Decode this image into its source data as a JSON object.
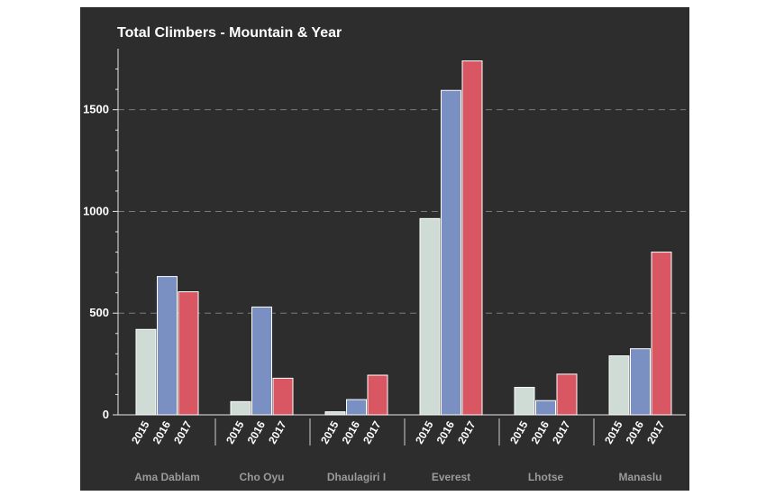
{
  "chart_data": {
    "type": "bar",
    "title": "Total Climbers - Mountain & Year",
    "xlabel": "",
    "ylabel": "",
    "ylim": [
      0,
      1800
    ],
    "yticks": [
      0,
      500,
      1000,
      1500
    ],
    "grid": "y-dashed",
    "categories": [
      "Ama Dablam",
      "Cho Oyu",
      "Dhaulagiri I",
      "Everest",
      "Lhotse",
      "Manaslu"
    ],
    "years": [
      "2015",
      "2016",
      "2017"
    ],
    "series": [
      {
        "name": "2015",
        "color": "#cfdbd5",
        "values": [
          420,
          65,
          15,
          965,
          135,
          290
        ]
      },
      {
        "name": "2016",
        "color": "#7a8fc2",
        "values": [
          680,
          530,
          75,
          1595,
          70,
          325
        ]
      },
      {
        "name": "2017",
        "color": "#d95763",
        "values": [
          605,
          180,
          195,
          1740,
          200,
          800
        ]
      }
    ]
  }
}
